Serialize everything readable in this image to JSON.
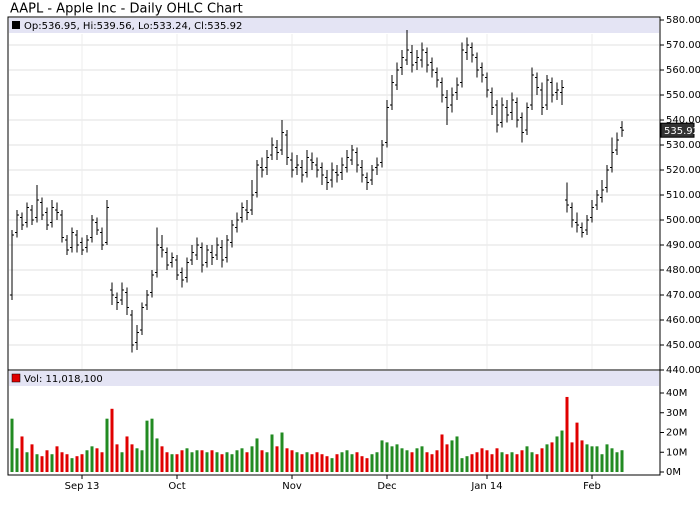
{
  "chart_data": [
    {
      "type": "ohlc",
      "title": "AAPL - Apple Inc - Daily OHLC Chart",
      "ohlc_label": "Op:536.95, Hi:539.56, Lo:533.24, Cl:535.92",
      "color": "#000000",
      "up_color": "#228b22",
      "down_color": "#e00000",
      "open": [
        470,
        495,
        501,
        499,
        504,
        501,
        507,
        503,
        499,
        504,
        502,
        492,
        489,
        494,
        491,
        489,
        493,
        499,
        495,
        491,
        472,
        469,
        468,
        471,
        462,
        451,
        456,
        466,
        471,
        479,
        489,
        487,
        483,
        484,
        479,
        477,
        484,
        486,
        489,
        483,
        487,
        486,
        489,
        485,
        491,
        497,
        501,
        504,
        504,
        511,
        521,
        521,
        526,
        529,
        528,
        534,
        524,
        521,
        521,
        519,
        524,
        522,
        521,
        517,
        516,
        519,
        519,
        521,
        524,
        527,
        521,
        517,
        516,
        521,
        523,
        531,
        546,
        554,
        561,
        564,
        567,
        563,
        564,
        567,
        563,
        559,
        555,
        549,
        546,
        551,
        555,
        567,
        569,
        565,
        561,
        557,
        551,
        546,
        539,
        545,
        543,
        547,
        541,
        536,
        546,
        557,
        552,
        546,
        555,
        551,
        551,
        508,
        505,
        499,
        497,
        496,
        501,
        506,
        509,
        513,
        521,
        528,
        536.95
      ],
      "high": [
        496,
        504,
        503,
        507,
        506,
        514,
        509,
        505,
        508,
        507,
        504,
        494,
        497,
        496,
        493,
        494,
        502,
        501,
        497,
        508,
        475,
        471,
        475,
        473,
        464,
        458,
        467,
        472,
        480,
        497,
        494,
        489,
        487,
        486,
        481,
        485,
        490,
        493,
        491,
        490,
        490,
        493,
        492,
        494,
        500,
        503,
        507,
        508,
        516,
        524,
        525,
        528,
        533,
        532,
        540,
        536,
        527,
        526,
        524,
        528,
        527,
        525,
        523,
        520,
        523,
        522,
        525,
        528,
        530,
        529,
        524,
        519,
        522,
        525,
        532,
        548,
        558,
        563,
        568,
        576,
        570,
        568,
        571,
        569,
        565,
        561,
        557,
        552,
        553,
        557,
        571,
        573,
        571,
        567,
        563,
        559,
        553,
        548,
        549,
        548,
        551,
        549,
        543,
        547,
        561,
        559,
        555,
        558,
        557,
        555,
        556,
        515,
        507,
        503,
        499,
        502,
        508,
        512,
        516,
        522,
        533,
        535,
        539.56
      ],
      "low": [
        468,
        493,
        496,
        497,
        498,
        499,
        500,
        496,
        497,
        500,
        491,
        486,
        487,
        487,
        486,
        487,
        491,
        494,
        488,
        490,
        466,
        464,
        466,
        462,
        447,
        448,
        454,
        464,
        469,
        477,
        485,
        480,
        481,
        476,
        473,
        475,
        482,
        484,
        479,
        481,
        482,
        484,
        481,
        483,
        489,
        495,
        499,
        500,
        502,
        509,
        517,
        518,
        524,
        524,
        526,
        522,
        517,
        518,
        515,
        517,
        520,
        517,
        514,
        512,
        513,
        515,
        516,
        519,
        522,
        519,
        515,
        512,
        514,
        518,
        521,
        529,
        544,
        552,
        558,
        562,
        559,
        560,
        561,
        559,
        557,
        553,
        547,
        538,
        543,
        548,
        553,
        564,
        563,
        557,
        555,
        549,
        542,
        535,
        537,
        539,
        540,
        537,
        531,
        534,
        544,
        550,
        542,
        544,
        547,
        548,
        546,
        503,
        497,
        495,
        493,
        494,
        499,
        504,
        507,
        511,
        519,
        526,
        533.24
      ],
      "close": [
        494,
        502,
        498,
        505,
        500,
        508,
        502,
        498,
        505,
        503,
        493,
        488,
        495,
        490,
        488,
        492,
        500,
        496,
        490,
        505,
        470,
        467,
        472,
        465,
        450,
        455,
        465,
        470,
        478,
        490,
        488,
        482,
        485,
        478,
        476,
        483,
        487,
        490,
        482,
        488,
        485,
        490,
        484,
        492,
        498,
        500,
        505,
        503,
        510,
        522,
        520,
        525,
        530,
        527,
        535,
        525,
        520,
        522,
        518,
        525,
        523,
        520,
        518,
        515,
        520,
        518,
        522,
        525,
        528,
        522,
        518,
        515,
        520,
        522,
        530,
        545,
        555,
        560,
        565,
        568,
        562,
        565,
        568,
        562,
        560,
        556,
        550,
        545,
        550,
        554,
        568,
        570,
        566,
        560,
        558,
        552,
        545,
        538,
        546,
        542,
        548,
        540,
        535,
        545,
        558,
        553,
        545,
        556,
        550,
        552,
        553,
        506,
        500,
        498,
        495,
        500,
        505,
        510,
        512,
        520,
        527,
        532,
        535.92
      ],
      "ylim": [
        440,
        580
      ],
      "yticks": [
        {
          "value": 440,
          "label": "440.00"
        },
        {
          "value": 450,
          "label": "450.00"
        },
        {
          "value": 460,
          "label": "460.00"
        },
        {
          "value": 470,
          "label": "470.00"
        },
        {
          "value": 480,
          "label": "480.00"
        },
        {
          "value": 490,
          "label": "490.00"
        },
        {
          "value": 500,
          "label": "500.00"
        },
        {
          "value": 510,
          "label": "510.00"
        },
        {
          "value": 520,
          "label": "520.00"
        },
        {
          "value": 530,
          "label": "530.00"
        },
        {
          "value": 540,
          "label": "540.00"
        },
        {
          "value": 550,
          "label": "550.00"
        },
        {
          "value": 560,
          "label": "560.00"
        },
        {
          "value": 570,
          "label": "570.00"
        },
        {
          "value": 580,
          "label": "580.00"
        }
      ],
      "grid": true
    },
    {
      "type": "bar",
      "legend_label": "Vol: 11,018,100",
      "categories": [
        null,
        null,
        null,
        null,
        null,
        null,
        null,
        null,
        null,
        null,
        null,
        null,
        null,
        null,
        "Sep 13",
        null,
        null,
        null,
        null,
        null,
        null,
        null,
        null,
        null,
        null,
        null,
        null,
        null,
        null,
        null,
        null,
        null,
        null,
        "Oct",
        null,
        null,
        null,
        null,
        null,
        null,
        null,
        null,
        null,
        null,
        null,
        null,
        null,
        null,
        null,
        null,
        null,
        null,
        null,
        null,
        null,
        null,
        "Nov",
        null,
        null,
        null,
        null,
        null,
        null,
        null,
        null,
        null,
        null,
        null,
        null,
        null,
        null,
        null,
        null,
        null,
        null,
        "Dec",
        null,
        null,
        null,
        null,
        null,
        null,
        null,
        null,
        null,
        null,
        null,
        null,
        null,
        null,
        null,
        null,
        null,
        null,
        null,
        "Jan 14",
        null,
        null,
        null,
        null,
        null,
        null,
        null,
        null,
        null,
        null,
        null,
        null,
        null,
        null,
        null,
        null,
        null,
        null,
        null,
        null,
        "Feb",
        null,
        null,
        null,
        null,
        null,
        null
      ],
      "values": [
        27000000,
        12000000,
        18000000,
        10000000,
        14000000,
        9000000,
        8000000,
        11000000,
        9000000,
        13000000,
        10000000,
        9000000,
        7000000,
        8000000,
        9000000,
        11000000,
        13000000,
        12000000,
        10000000,
        27000000,
        32000000,
        14000000,
        10000000,
        18000000,
        14000000,
        12000000,
        11000000,
        26000000,
        27000000,
        17000000,
        13000000,
        10000000,
        9000000,
        9000000,
        11000000,
        12000000,
        10000000,
        11000000,
        11000000,
        10000000,
        11000000,
        10000000,
        9000000,
        10000000,
        9000000,
        11000000,
        12000000,
        10000000,
        13000000,
        17000000,
        11000000,
        10000000,
        19000000,
        13000000,
        20000000,
        12000000,
        11000000,
        10000000,
        9000000,
        10000000,
        9000000,
        10000000,
        9000000,
        8000000,
        7000000,
        9000000,
        10000000,
        11000000,
        9000000,
        10000000,
        8000000,
        7000000,
        9000000,
        10000000,
        16000000,
        15000000,
        13000000,
        14000000,
        12000000,
        11000000,
        10000000,
        12000000,
        13000000,
        10000000,
        9000000,
        11000000,
        19000000,
        14000000,
        16000000,
        18000000,
        7000000,
        8000000,
        9000000,
        10000000,
        12000000,
        11000000,
        9000000,
        12000000,
        10000000,
        9000000,
        10000000,
        9000000,
        11000000,
        13000000,
        10000000,
        9000000,
        12000000,
        14000000,
        15000000,
        18000000,
        21000000,
        38000000,
        15000000,
        25000000,
        16000000,
        14000000,
        13000000,
        13000000,
        9000000,
        14000000,
        12000000,
        10000000,
        11018100
      ],
      "ylim": [
        0,
        40000000
      ],
      "yticks": [
        {
          "value": 0,
          "label": "0M"
        },
        {
          "value": 10000000,
          "label": "10M"
        },
        {
          "value": 20000000,
          "label": "20M"
        },
        {
          "value": 30000000,
          "label": "30M"
        },
        {
          "value": 40000000,
          "label": "40M"
        }
      ]
    }
  ]
}
